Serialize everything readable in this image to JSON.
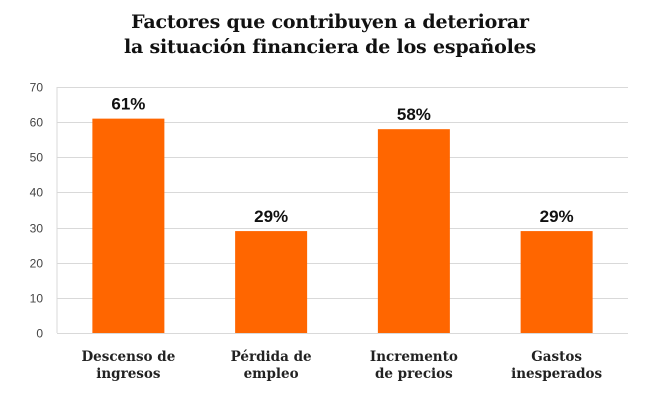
{
  "chart_data": {
    "type": "bar",
    "title_lines": [
      "Factores que contribuyen a deteriorar",
      "la situación financiera de los españoles"
    ],
    "categories": [
      [
        "Descenso de",
        "ingresos"
      ],
      [
        "Pérdida de",
        "empleo"
      ],
      [
        "Incremento",
        "de precios"
      ],
      [
        "Gastos",
        "inesperados"
      ]
    ],
    "values": [
      61,
      29,
      58,
      29
    ],
    "data_labels": [
      "61%",
      "29%",
      "58%",
      "29%"
    ],
    "y_ticks": [
      "0",
      "10",
      "20",
      "30",
      "40",
      "50",
      "60",
      "70"
    ],
    "ylim": [
      0,
      70
    ],
    "grid": true,
    "bar_color": "#FF6600",
    "grid_color": "#D9D9D9"
  }
}
